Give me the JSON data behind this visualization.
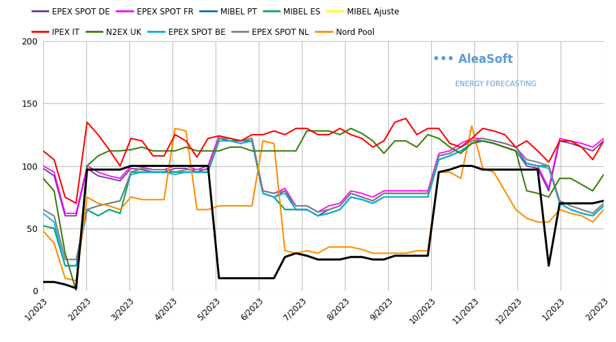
{
  "legend_top_entries": [
    "EPEX SPOT DE",
    "EPEX SPOT FR",
    "MIBEL PT",
    "MIBEL ES",
    "MIBEL Ajuste"
  ],
  "legend_top_colors": [
    "#7030a0",
    "#ff00ff",
    "#0070c0",
    "#00b050",
    "#ffff00"
  ],
  "legend_bottom_entries": [
    "IPEX IT",
    "N2EX UK",
    "EPEX SPOT BE",
    "EPEX SPOT NL",
    "Nord Pool"
  ],
  "legend_bottom_colors": [
    "#ff0000",
    "#3a7d0a",
    "#00b0f0",
    "#7f7f7f",
    "#ff8c00"
  ],
  "black_line_color": "#000000",
  "ylim": [
    0,
    200
  ],
  "yticks": [
    0,
    50,
    100,
    150,
    200
  ],
  "background_color": "#ffffff",
  "grid_color": "#c0c0c0",
  "watermark_line1": "••• AleaSoft",
  "watermark_line2": "ENERGY FORECASTING",
  "watermark_color": "#5b9bd5",
  "x_tick_labels": [
    "1/2023",
    "2/2023",
    "3/2023",
    "4/2023",
    "5/2023",
    "6/2023",
    "7/2023",
    "8/2023",
    "9/2023",
    "10/2023",
    "11/2023",
    "12/2023",
    "1/2023",
    "2/2023"
  ],
  "n_points": 52,
  "series_ipex_it": [
    112,
    105,
    75,
    70,
    135,
    125,
    113,
    100,
    122,
    120,
    108,
    108,
    125,
    120,
    107,
    122,
    124,
    122,
    120,
    125,
    125,
    128,
    125,
    130,
    130,
    125,
    125,
    130,
    125,
    122,
    115,
    120,
    135,
    138,
    125,
    130,
    130,
    118,
    115,
    122,
    130,
    128,
    125,
    115,
    120,
    112,
    103,
    120,
    120,
    115,
    105,
    120
  ],
  "series_n2ex_uk": [
    90,
    80,
    30,
    0,
    100,
    108,
    112,
    112,
    113,
    115,
    112,
    112,
    112,
    115,
    112,
    112,
    112,
    115,
    115,
    112,
    112,
    112,
    112,
    112,
    128,
    128,
    128,
    125,
    130,
    126,
    120,
    110,
    120,
    120,
    115,
    125,
    122,
    115,
    110,
    118,
    120,
    118,
    115,
    112,
    80,
    78,
    75,
    90,
    90,
    85,
    80,
    93
  ],
  "series_epex_be": [
    62,
    55,
    20,
    20,
    65,
    68,
    70,
    72,
    93,
    95,
    95,
    95,
    93,
    95,
    95,
    95,
    120,
    120,
    118,
    120,
    78,
    75,
    78,
    65,
    65,
    60,
    62,
    65,
    75,
    73,
    70,
    75,
    75,
    75,
    75,
    75,
    105,
    108,
    112,
    118,
    120,
    118,
    115,
    112,
    102,
    100,
    98,
    70,
    65,
    62,
    60,
    68
  ],
  "series_epex_nl": [
    65,
    60,
    25,
    25,
    65,
    68,
    70,
    72,
    95,
    98,
    97,
    97,
    95,
    97,
    97,
    97,
    122,
    122,
    120,
    122,
    80,
    78,
    80,
    68,
    68,
    63,
    65,
    68,
    78,
    75,
    72,
    78,
    78,
    78,
    78,
    78,
    108,
    110,
    115,
    120,
    122,
    120,
    118,
    115,
    105,
    103,
    100,
    72,
    68,
    65,
    62,
    70
  ],
  "series_nord_pool": [
    48,
    38,
    10,
    8,
    75,
    70,
    68,
    65,
    75,
    73,
    73,
    73,
    130,
    128,
    65,
    65,
    68,
    68,
    68,
    68,
    120,
    118,
    32,
    30,
    32,
    30,
    35,
    35,
    35,
    33,
    30,
    30,
    30,
    30,
    32,
    32,
    95,
    95,
    90,
    132,
    98,
    95,
    80,
    65,
    58,
    55,
    55,
    65,
    62,
    60,
    55,
    65
  ],
  "series_epex_de": [
    98,
    92,
    60,
    60,
    98,
    92,
    90,
    88,
    98,
    97,
    95,
    95,
    98,
    98,
    95,
    98,
    122,
    120,
    118,
    120,
    78,
    75,
    80,
    65,
    65,
    60,
    65,
    68,
    78,
    75,
    72,
    78,
    78,
    78,
    78,
    78,
    108,
    110,
    115,
    120,
    120,
    118,
    115,
    112,
    100,
    98,
    80,
    120,
    118,
    115,
    112,
    120
  ],
  "series_epex_fr": [
    100,
    95,
    62,
    62,
    100,
    95,
    92,
    90,
    100,
    99,
    97,
    97,
    100,
    100,
    97,
    100,
    124,
    122,
    120,
    122,
    80,
    78,
    82,
    68,
    68,
    63,
    68,
    70,
    80,
    78,
    75,
    80,
    80,
    80,
    80,
    80,
    110,
    112,
    118,
    122,
    122,
    120,
    118,
    115,
    102,
    100,
    82,
    122,
    120,
    118,
    115,
    122
  ],
  "series_mibel_pt": [
    52,
    50,
    20,
    20,
    65,
    60,
    65,
    62,
    95,
    95,
    95,
    95,
    95,
    95,
    95,
    95,
    120,
    120,
    120,
    120,
    78,
    75,
    65,
    65,
    65,
    60,
    62,
    65,
    75,
    73,
    70,
    75,
    75,
    75,
    75,
    75,
    105,
    108,
    112,
    118,
    120,
    118,
    115,
    112,
    102,
    100,
    100,
    70,
    65,
    62,
    60,
    68
  ],
  "series_mibel_es": [
    52,
    50,
    20,
    20,
    65,
    60,
    65,
    62,
    95,
    95,
    95,
    95,
    95,
    95,
    95,
    95,
    120,
    120,
    120,
    120,
    78,
    75,
    65,
    65,
    65,
    60,
    62,
    65,
    75,
    73,
    70,
    75,
    75,
    75,
    75,
    75,
    105,
    108,
    112,
    118,
    120,
    118,
    115,
    112,
    102,
    100,
    100,
    70,
    65,
    62,
    60,
    68
  ],
  "series_black": [
    7,
    7,
    5,
    2,
    97,
    97,
    97,
    97,
    100,
    100,
    100,
    100,
    100,
    100,
    100,
    100,
    10,
    10,
    10,
    10,
    10,
    10,
    27,
    30,
    28,
    25,
    25,
    25,
    27,
    27,
    25,
    25,
    28,
    28,
    28,
    28,
    95,
    97,
    100,
    100,
    97,
    97,
    97,
    97,
    97,
    97,
    20,
    70,
    70,
    70,
    70,
    72
  ]
}
